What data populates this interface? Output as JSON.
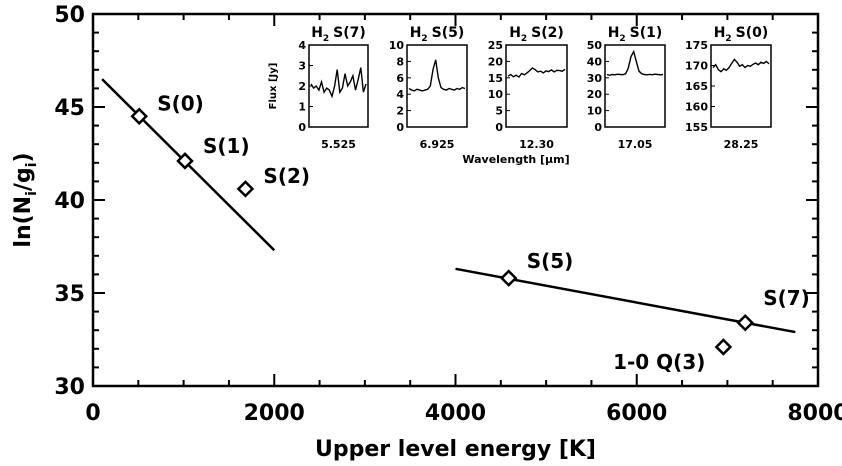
{
  "chart_data": [
    {
      "type": "scatter",
      "xlabel": "Upper level energy [K]",
      "ylabel_main": "ln(N",
      "ylabel_sub1": "i",
      "ylabel_mid": "/g",
      "ylabel_sub2": "i",
      "ylabel_end": ")",
      "xlim": [
        0,
        8000
      ],
      "ylim": [
        30,
        50
      ],
      "x_ticks": [
        0,
        2000,
        4000,
        6000,
        8000
      ],
      "y_ticks": [
        30,
        35,
        40,
        45,
        50
      ],
      "points": [
        {
          "label": "S(0)",
          "x": 510,
          "y": 44.5
        },
        {
          "label": "S(1)",
          "x": 1015,
          "y": 42.1
        },
        {
          "label": "S(2)",
          "x": 1682,
          "y": 40.6
        },
        {
          "label": "S(5)",
          "x": 4587,
          "y": 35.8
        },
        {
          "label": "S(7)",
          "x": 7197,
          "y": 33.4
        },
        {
          "label": "1-0 Q(3)",
          "x": 6956,
          "y": 32.1
        }
      ],
      "fits": [
        {
          "x": [
            100,
            2000
          ],
          "y": [
            46.5,
            37.3
          ]
        },
        {
          "x": [
            4000,
            7750
          ],
          "y": [
            36.3,
            32.9
          ]
        }
      ]
    },
    {
      "type": "line",
      "title": "H",
      "title_sub": "2",
      "title_line": "S(7)",
      "ylabel": "Flux [Jy]",
      "center_label": "5.525",
      "ylim": [
        0,
        4
      ],
      "y_ticks": [
        0,
        1,
        2,
        3,
        4
      ],
      "flux": [
        2.1,
        1.9,
        2.0,
        1.8,
        2.2,
        1.7,
        1.9,
        1.8,
        1.5,
        2.0,
        2.8,
        1.7,
        1.9,
        2.6,
        2.0,
        2.2,
        2.5,
        1.8,
        2.3,
        2.9,
        1.7,
        2.1
      ]
    },
    {
      "type": "line",
      "title": "H",
      "title_sub": "2",
      "title_line": "S(5)",
      "center_label": "6.925",
      "ylim": [
        0,
        10
      ],
      "y_ticks": [
        0,
        2,
        4,
        6,
        8,
        10
      ],
      "flux": [
        4.7,
        4.5,
        4.4,
        4.6,
        4.5,
        4.4,
        4.5,
        4.6,
        5.0,
        7.0,
        8.2,
        6.0,
        4.8,
        4.6,
        4.5,
        4.7,
        4.6,
        4.5,
        4.7,
        4.6,
        4.8,
        4.7
      ]
    },
    {
      "type": "line",
      "title": "H",
      "title_sub": "2",
      "title_line": "S(2)",
      "center_label": "12.30",
      "ylim": [
        0,
        25
      ],
      "y_ticks": [
        0,
        5,
        10,
        15,
        20,
        25
      ],
      "flux": [
        15.5,
        16.0,
        15.3,
        15.8,
        15.2,
        16.3,
        15.9,
        16.5,
        17.2,
        18.0,
        17.5,
        16.8,
        17.0,
        16.5,
        17.1,
        16.9,
        17.4,
        16.8,
        17.3,
        17.2,
        17.0,
        17.6
      ]
    },
    {
      "type": "line",
      "title": "H",
      "title_sub": "2",
      "title_line": "S(1)",
      "center_label": "17.05",
      "ylim": [
        0,
        50
      ],
      "y_ticks": [
        0,
        10,
        20,
        30,
        40,
        50
      ],
      "flux": [
        32,
        31.5,
        32,
        31.8,
        32.2,
        32,
        31.9,
        32.5,
        36,
        43,
        46,
        40,
        34,
        32.5,
        32,
        31.8,
        32.1,
        31.9,
        32.2,
        32,
        31.8,
        32
      ]
    },
    {
      "type": "line",
      "title": "H",
      "title_sub": "2",
      "title_line": "S(0)",
      "center_label": "28.25",
      "ylim": [
        155,
        175
      ],
      "y_ticks": [
        155,
        160,
        165,
        170,
        175
      ],
      "flux": [
        169.5,
        170.2,
        169.0,
        168.5,
        169.2,
        168.8,
        169.5,
        170.5,
        171.5,
        170.8,
        169.8,
        170.2,
        169.5,
        170.0,
        169.8,
        170.3,
        170.6,
        170.2,
        170.8,
        170.5,
        171.0,
        170.4
      ]
    }
  ],
  "inset_xlabel": "Wavelength [μm]"
}
